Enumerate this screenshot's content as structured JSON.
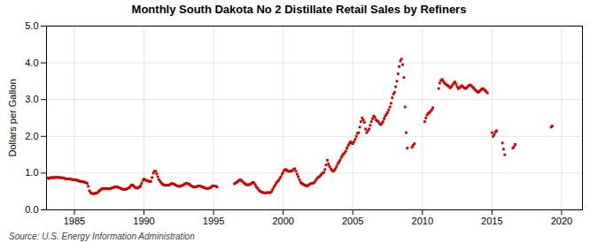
{
  "chart_data": {
    "type": "scatter",
    "title": "Monthly South Dakota No 2 Distillate Retail Sales by Refiners",
    "ylabel": "Dollars per Gallon",
    "source": "Source: U.S. Energy Information Administration",
    "color": "#cc0000",
    "marker": "square",
    "grid": true,
    "xlim": [
      1983.0,
      2021.5
    ],
    "ylim": [
      0.0,
      5.0
    ],
    "xticks": [
      1985,
      1990,
      1995,
      2000,
      2005,
      2010,
      2015,
      2020
    ],
    "yticks": [
      {
        "value": 0.0,
        "label": "0.0"
      },
      {
        "value": 1.0,
        "label": "1.0"
      },
      {
        "value": 2.0,
        "label": "2.0"
      },
      {
        "value": 3.0,
        "label": "3.0"
      },
      {
        "value": 4.0,
        "label": "4.0"
      },
      {
        "value": 5.0,
        "label": "5.0"
      }
    ],
    "x": [
      1983.08,
      1983.17,
      1983.25,
      1983.33,
      1983.42,
      1983.5,
      1983.58,
      1983.67,
      1983.75,
      1983.83,
      1983.92,
      1984.0,
      1984.08,
      1984.17,
      1984.25,
      1984.33,
      1984.42,
      1984.5,
      1984.58,
      1984.67,
      1984.75,
      1984.83,
      1984.92,
      1985.0,
      1985.08,
      1985.17,
      1985.25,
      1985.33,
      1985.42,
      1985.5,
      1985.58,
      1985.67,
      1985.75,
      1985.83,
      1985.92,
      1986.0,
      1986.08,
      1986.17,
      1986.25,
      1986.33,
      1986.42,
      1986.5,
      1986.58,
      1986.67,
      1986.75,
      1986.83,
      1986.92,
      1987.0,
      1987.08,
      1987.17,
      1987.25,
      1987.33,
      1987.42,
      1987.5,
      1987.58,
      1987.67,
      1987.75,
      1987.83,
      1987.92,
      1988.0,
      1988.08,
      1988.17,
      1988.25,
      1988.33,
      1988.42,
      1988.5,
      1988.58,
      1988.67,
      1988.75,
      1988.83,
      1988.92,
      1989.0,
      1989.08,
      1989.17,
      1989.25,
      1989.33,
      1989.42,
      1989.5,
      1989.58,
      1989.67,
      1989.75,
      1989.83,
      1989.92,
      1990.0,
      1990.08,
      1990.17,
      1990.25,
      1990.33,
      1990.42,
      1990.5,
      1990.58,
      1990.67,
      1990.75,
      1990.83,
      1990.92,
      1991.0,
      1991.08,
      1991.17,
      1991.25,
      1991.33,
      1991.42,
      1991.5,
      1991.58,
      1991.67,
      1991.75,
      1991.83,
      1991.92,
      1992.0,
      1992.08,
      1992.17,
      1992.25,
      1992.33,
      1992.42,
      1992.5,
      1992.58,
      1992.67,
      1992.75,
      1992.83,
      1992.92,
      1993.0,
      1993.08,
      1993.17,
      1993.25,
      1993.33,
      1993.42,
      1993.5,
      1993.58,
      1993.67,
      1993.75,
      1993.83,
      1993.92,
      1994.0,
      1994.08,
      1994.17,
      1994.25,
      1994.33,
      1994.42,
      1994.5,
      1994.58,
      1994.67,
      1994.75,
      1994.83,
      1994.92,
      1995.08,
      1995.17,
      1995.25,
      1996.5,
      1996.58,
      1996.67,
      1996.75,
      1996.83,
      1996.92,
      1997.0,
      1997.08,
      1997.17,
      1997.25,
      1997.33,
      1997.42,
      1997.5,
      1997.58,
      1997.67,
      1997.75,
      1997.83,
      1997.92,
      1998.0,
      1998.08,
      1998.17,
      1998.25,
      1998.33,
      1998.42,
      1998.5,
      1998.58,
      1998.67,
      1998.75,
      1998.83,
      1998.92,
      1999.0,
      1999.08,
      1999.17,
      1999.25,
      1999.33,
      1999.42,
      1999.5,
      1999.58,
      1999.67,
      1999.75,
      1999.83,
      1999.92,
      2000.0,
      2000.08,
      2000.17,
      2000.25,
      2000.33,
      2000.42,
      2000.5,
      2000.58,
      2000.67,
      2000.75,
      2000.83,
      2000.92,
      2001.0,
      2001.08,
      2001.17,
      2001.25,
      2001.33,
      2001.42,
      2001.5,
      2001.58,
      2001.67,
      2001.75,
      2001.83,
      2001.92,
      2002.0,
      2002.08,
      2002.17,
      2002.25,
      2002.33,
      2002.42,
      2002.5,
      2002.58,
      2002.67,
      2002.75,
      2002.83,
      2002.92,
      2003.0,
      2003.08,
      2003.17,
      2003.25,
      2003.33,
      2003.42,
      2003.5,
      2003.58,
      2003.67,
      2003.75,
      2003.83,
      2003.92,
      2004.0,
      2004.08,
      2004.17,
      2004.25,
      2004.33,
      2004.42,
      2004.5,
      2004.58,
      2004.67,
      2004.75,
      2004.83,
      2004.92,
      2005.0,
      2005.08,
      2005.17,
      2005.25,
      2005.33,
      2005.42,
      2005.5,
      2005.58,
      2005.67,
      2005.75,
      2005.83,
      2005.92,
      2006.0,
      2006.08,
      2006.17,
      2006.25,
      2006.33,
      2006.42,
      2006.5,
      2006.58,
      2006.67,
      2006.75,
      2006.83,
      2006.92,
      2007.0,
      2007.08,
      2007.17,
      2007.25,
      2007.33,
      2007.42,
      2007.5,
      2007.58,
      2007.67,
      2007.75,
      2007.83,
      2007.92,
      2008.0,
      2008.08,
      2008.17,
      2008.25,
      2008.33,
      2008.42,
      2008.5,
      2008.58,
      2008.67,
      2008.75,
      2008.83,
      2008.92,
      2009.25,
      2009.33,
      2009.42,
      2010.17,
      2010.25,
      2010.33,
      2010.42,
      2010.5,
      2010.58,
      2010.67,
      2010.75,
      2011.17,
      2011.25,
      2011.33,
      2011.42,
      2011.5,
      2011.58,
      2011.67,
      2011.75,
      2011.83,
      2011.92,
      2012.0,
      2012.08,
      2012.17,
      2012.25,
      2012.33,
      2012.42,
      2012.5,
      2012.58,
      2012.67,
      2012.75,
      2012.83,
      2012.92,
      2013.0,
      2013.08,
      2013.17,
      2013.25,
      2013.33,
      2013.42,
      2013.5,
      2013.58,
      2013.67,
      2013.75,
      2013.83,
      2013.92,
      2014.0,
      2014.08,
      2014.17,
      2014.25,
      2014.33,
      2014.42,
      2014.5,
      2014.58,
      2014.67,
      2015.0,
      2015.08,
      2015.17,
      2015.25,
      2015.33,
      2015.75,
      2015.83,
      2015.92,
      2016.5,
      2016.58,
      2016.67,
      2019.25,
      2019.33
    ],
    "values": [
      0.87,
      0.85,
      0.87,
      0.88,
      0.88,
      0.87,
      0.88,
      0.89,
      0.88,
      0.88,
      0.88,
      0.88,
      0.87,
      0.87,
      0.87,
      0.85,
      0.84,
      0.84,
      0.84,
      0.84,
      0.83,
      0.83,
      0.82,
      0.82,
      0.82,
      0.81,
      0.8,
      0.78,
      0.78,
      0.77,
      0.77,
      0.76,
      0.75,
      0.74,
      0.72,
      0.64,
      0.52,
      0.47,
      0.45,
      0.44,
      0.44,
      0.45,
      0.46,
      0.47,
      0.5,
      0.53,
      0.56,
      0.58,
      0.57,
      0.58,
      0.58,
      0.58,
      0.58,
      0.57,
      0.58,
      0.59,
      0.6,
      0.61,
      0.63,
      0.63,
      0.62,
      0.61,
      0.6,
      0.58,
      0.57,
      0.56,
      0.55,
      0.56,
      0.57,
      0.58,
      0.6,
      0.63,
      0.67,
      0.68,
      0.65,
      0.62,
      0.6,
      0.59,
      0.6,
      0.62,
      0.65,
      0.72,
      0.8,
      0.84,
      0.82,
      0.8,
      0.79,
      0.78,
      0.77,
      0.78,
      0.88,
      1.0,
      1.05,
      1.05,
      0.98,
      0.9,
      0.82,
      0.77,
      0.73,
      0.7,
      0.68,
      0.67,
      0.67,
      0.67,
      0.67,
      0.68,
      0.7,
      0.72,
      0.71,
      0.7,
      0.68,
      0.66,
      0.65,
      0.64,
      0.64,
      0.65,
      0.67,
      0.68,
      0.7,
      0.72,
      0.72,
      0.71,
      0.7,
      0.67,
      0.65,
      0.63,
      0.62,
      0.62,
      0.63,
      0.64,
      0.65,
      0.65,
      0.64,
      0.63,
      0.62,
      0.6,
      0.59,
      0.58,
      0.58,
      0.59,
      0.6,
      0.62,
      0.65,
      0.65,
      0.64,
      0.62,
      0.71,
      0.73,
      0.75,
      0.78,
      0.8,
      0.82,
      0.8,
      0.77,
      0.74,
      0.71,
      0.69,
      0.68,
      0.68,
      0.69,
      0.7,
      0.73,
      0.75,
      0.73,
      0.68,
      0.62,
      0.58,
      0.54,
      0.51,
      0.49,
      0.48,
      0.47,
      0.46,
      0.46,
      0.47,
      0.47,
      0.47,
      0.47,
      0.5,
      0.56,
      0.62,
      0.67,
      0.73,
      0.77,
      0.8,
      0.85,
      0.9,
      0.97,
      1.02,
      1.08,
      1.1,
      1.08,
      1.05,
      1.05,
      1.05,
      1.05,
      1.07,
      1.1,
      1.12,
      1.05,
      0.97,
      0.9,
      0.82,
      0.75,
      0.72,
      0.7,
      0.68,
      0.67,
      0.65,
      0.65,
      0.68,
      0.7,
      0.72,
      0.72,
      0.73,
      0.75,
      0.8,
      0.85,
      0.88,
      0.9,
      0.93,
      0.97,
      1.0,
      1.02,
      1.1,
      1.22,
      1.35,
      1.25,
      1.18,
      1.12,
      1.08,
      1.05,
      1.07,
      1.12,
      1.18,
      1.25,
      1.3,
      1.35,
      1.42,
      1.48,
      1.52,
      1.55,
      1.6,
      1.68,
      1.75,
      1.8,
      1.85,
      1.82,
      1.8,
      1.85,
      1.92,
      2.0,
      2.08,
      2.1,
      2.25,
      2.4,
      2.5,
      2.45,
      2.38,
      2.2,
      2.1,
      2.15,
      2.2,
      2.3,
      2.4,
      2.48,
      2.55,
      2.52,
      2.45,
      2.42,
      2.4,
      2.35,
      2.32,
      2.35,
      2.4,
      2.48,
      2.55,
      2.6,
      2.65,
      2.72,
      2.8,
      2.9,
      3.05,
      3.15,
      3.2,
      3.35,
      3.5,
      3.7,
      3.9,
      4.05,
      4.1,
      3.95,
      3.6,
      2.8,
      2.1,
      1.68,
      1.7,
      1.75,
      1.8,
      2.4,
      2.5,
      2.58,
      2.62,
      2.65,
      2.68,
      2.72,
      2.78,
      3.3,
      3.45,
      3.52,
      3.55,
      3.5,
      3.45,
      3.42,
      3.4,
      3.38,
      3.35,
      3.32,
      3.35,
      3.4,
      3.45,
      3.48,
      3.42,
      3.35,
      3.3,
      3.32,
      3.35,
      3.38,
      3.35,
      3.32,
      3.3,
      3.32,
      3.35,
      3.38,
      3.4,
      3.38,
      3.35,
      3.32,
      3.28,
      3.25,
      3.22,
      3.2,
      3.22,
      3.25,
      3.28,
      3.3,
      3.28,
      3.25,
      3.22,
      3.18,
      2.1,
      2.0,
      2.05,
      2.12,
      2.15,
      1.82,
      1.65,
      1.5,
      1.68,
      1.72,
      1.78,
      2.25,
      2.28
    ]
  }
}
